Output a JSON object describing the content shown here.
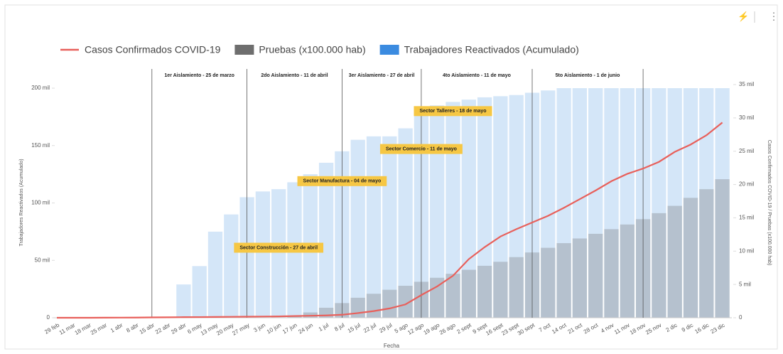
{
  "chart_data": {
    "type": "combo",
    "x_label": "Fecha",
    "y_label": "Trabajadores Reactivados (Acumulado)",
    "y2_label": "Casos Confirmados COVID-19 / Pruebas (x100.000 hab)",
    "categories": [
      "29 feb",
      "11 mar",
      "18 mar",
      "25 mar",
      "1 abr",
      "8 abr",
      "15 abr",
      "22 abr",
      "29 abr",
      "6 may",
      "13 may",
      "20 may",
      "27 may",
      "3 jun",
      "10 jun",
      "17 jun",
      "24 jun",
      "1 jul",
      "8 jul",
      "15 jul",
      "22 jul",
      "29 jul",
      "5 ago",
      "12 ago",
      "19 ago",
      "26 ago",
      "2 sept",
      "9 sept",
      "16 sept",
      "23 sept",
      "30 sept",
      "7 oct",
      "14 oct",
      "21 oct",
      "28 oct",
      "4 nov",
      "11 nov",
      "18 nov",
      "25 nov",
      "2 dic",
      "9 dic",
      "16 dic",
      "23 dic"
    ],
    "series": [
      {
        "name": "Casos Confirmados COVID-19",
        "type": "line",
        "axis": "y2",
        "color": "#e8605b",
        "values": [
          0,
          0,
          0,
          10,
          20,
          30,
          50,
          70,
          90,
          100,
          120,
          140,
          160,
          180,
          200,
          250,
          300,
          350,
          450,
          700,
          1000,
          1400,
          2000,
          3400,
          4700,
          6300,
          8800,
          10600,
          12200,
          13300,
          14300,
          15300,
          16500,
          17800,
          19100,
          20500,
          21600,
          22400,
          23400,
          24900,
          26000,
          27400,
          29300
        ]
      },
      {
        "name": "Pruebas (x100.000 hab)",
        "type": "bar",
        "axis": "y2",
        "color": "#6e6e6e",
        "values": [
          0,
          0,
          0,
          0,
          0,
          0,
          0,
          0,
          0,
          0,
          0,
          0,
          0,
          0,
          0,
          300,
          800,
          1500,
          2200,
          3000,
          3600,
          4200,
          4800,
          5400,
          6000,
          6600,
          7200,
          7800,
          8400,
          9100,
          9800,
          10500,
          11200,
          11900,
          12600,
          13300,
          14000,
          14800,
          15700,
          16800,
          18000,
          19300,
          20800
        ]
      },
      {
        "name": "Trabajadores Reactivados (Acumulado)",
        "type": "bar",
        "axis": "y",
        "color": "#3b8be0",
        "values": [
          0,
          0,
          0,
          0,
          0,
          0,
          0,
          0,
          29000,
          45000,
          75000,
          90000,
          105000,
          110000,
          112000,
          118000,
          125000,
          135000,
          145000,
          155000,
          158000,
          158000,
          165000,
          178000,
          185000,
          188000,
          190000,
          192000,
          193000,
          194000,
          196000,
          198000,
          200000,
          200000,
          200000,
          200000,
          200000,
          200000,
          200000,
          200000,
          200000,
          200000,
          200000
        ]
      }
    ],
    "ylim": [
      0,
      200000
    ],
    "yticks": [
      0,
      {
        "value": 50000,
        "label": "50 mil"
      },
      {
        "value": 100000,
        "label": "100 mil"
      },
      {
        "value": 150000,
        "label": "150 mil"
      },
      {
        "value": 200000,
        "label": "200 mil"
      }
    ],
    "y2lim": [
      0,
      35000
    ],
    "y2ticks": [
      0,
      {
        "value": 5000,
        "label": "5 mil"
      },
      {
        "value": 10000,
        "label": "10 mil"
      },
      {
        "value": 15000,
        "label": "15 mil"
      },
      {
        "value": 20000,
        "label": "20 mil"
      },
      {
        "value": 25000,
        "label": "25 mil"
      },
      {
        "value": 30000,
        "label": "30 mil"
      },
      {
        "value": 35000,
        "label": "35 mil"
      }
    ],
    "phases": [
      {
        "x": "15 abr",
        "label": "1er Aislamiento - 25 de marzo"
      },
      {
        "x": "27 may",
        "label": "2do Aislamiento - 11 de abril"
      },
      {
        "x": "8 jul",
        "label": "3er Aislamiento - 27 de abril"
      },
      {
        "x": "12 ago",
        "label": "4to Aislamiento - 11 de mayo"
      },
      {
        "x": "30 sept",
        "label": "5to Aislamiento - 1 de junio"
      },
      {
        "x": "18 nov"
      }
    ],
    "annotations": [
      {
        "text": "Sector Construcción - 27 de abril",
        "x": "10 jun",
        "y": 61000
      },
      {
        "text": "Sector Manufactura - 04 de mayo",
        "x": "8 jul",
        "y": 119000
      },
      {
        "text": "Sector Comercio - 11 de mayo",
        "x": "12 ago",
        "y": 147000
      },
      {
        "text": "Sector Talleres - 18 de mayo",
        "x": "26 ago",
        "y": 180000
      }
    ],
    "legend": "top"
  }
}
